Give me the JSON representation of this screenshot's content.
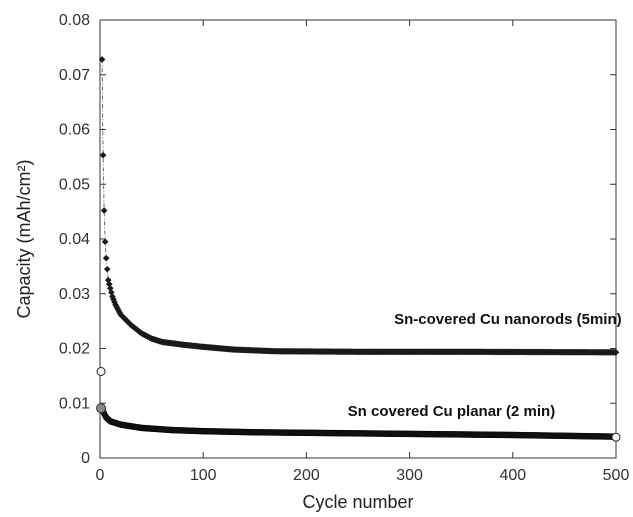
{
  "chart_data": {
    "type": "scatter",
    "xlabel": "Cycle number",
    "ylabel": "Capacity (mAh/cm²)",
    "xlim": [
      0,
      500
    ],
    "ylim": [
      0,
      0.08
    ],
    "x_ticks": [
      0,
      100,
      200,
      300,
      400,
      500
    ],
    "y_ticks": [
      0,
      0.01,
      0.02,
      0.03,
      0.04,
      0.05,
      0.06,
      0.07,
      0.08
    ],
    "x_tick_labels": [
      "0",
      "100",
      "200",
      "300",
      "400",
      "500"
    ],
    "y_tick_labels": [
      "0",
      "0.01",
      "0.02",
      "0.03",
      "0.04",
      "0.05",
      "0.06",
      "0.07",
      "0.08"
    ],
    "grid": false,
    "series": [
      {
        "name": "Sn-covered Cu nanorods (5min)",
        "marker": "diamond",
        "color": "#1a1a1a",
        "first_point": [
          1,
          0.0158
        ],
        "first_point_marker": "open-circle",
        "anchors": [
          [
            2,
            0.0728
          ],
          [
            3,
            0.0553
          ],
          [
            4,
            0.0452
          ],
          [
            5,
            0.0395
          ],
          [
            6,
            0.0365
          ],
          [
            7,
            0.0345
          ],
          [
            8,
            0.0325
          ],
          [
            10,
            0.031
          ],
          [
            12,
            0.0295
          ],
          [
            15,
            0.028
          ],
          [
            20,
            0.0262
          ],
          [
            30,
            0.0243
          ],
          [
            40,
            0.0228
          ],
          [
            50,
            0.0218
          ],
          [
            60,
            0.0212
          ],
          [
            80,
            0.0207
          ],
          [
            100,
            0.0203
          ],
          [
            130,
            0.0198
          ],
          [
            170,
            0.0195
          ],
          [
            250,
            0.0194
          ],
          [
            350,
            0.0194
          ],
          [
            500,
            0.0193
          ]
        ],
        "annotation": {
          "text": "Sn-covered Cu nanorods (5min)",
          "x": 285,
          "y": 0.0245
        }
      },
      {
        "name": "Sn covered Cu planar (2 min)",
        "marker": "circle",
        "color": "#1a1a1a",
        "last_point": [
          500,
          0.0038
        ],
        "last_point_marker": "open-circle",
        "anchors": [
          [
            1,
            0.0091
          ],
          [
            3,
            0.0085
          ],
          [
            6,
            0.0074
          ],
          [
            10,
            0.0067
          ],
          [
            20,
            0.0061
          ],
          [
            40,
            0.0055
          ],
          [
            70,
            0.0051
          ],
          [
            100,
            0.0049
          ],
          [
            150,
            0.0047
          ],
          [
            200,
            0.0046
          ],
          [
            300,
            0.0044
          ],
          [
            400,
            0.0042
          ],
          [
            499,
            0.0039
          ]
        ],
        "annotation": {
          "text": "Sn covered Cu planar  (2 min)",
          "x": 240,
          "y": 0.0077
        }
      }
    ]
  }
}
